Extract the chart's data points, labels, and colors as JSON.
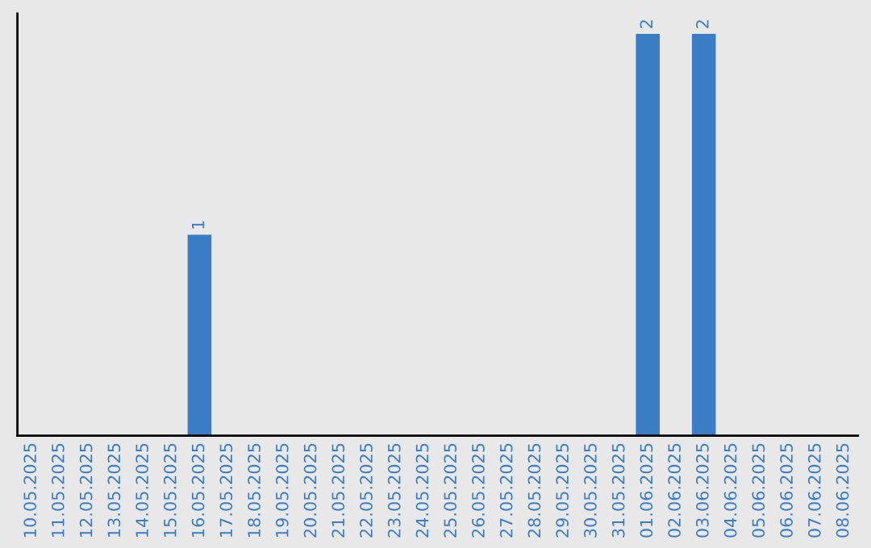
{
  "chart_data": {
    "type": "bar",
    "categories": [
      "10.05.2025",
      "11.05.2025",
      "12.05.2025",
      "13.05.2025",
      "14.05.2025",
      "15.05.2025",
      "16.05.2025",
      "17.05.2025",
      "18.05.2025",
      "19.05.2025",
      "20.05.2025",
      "21.05.2025",
      "22.05.2025",
      "23.05.2025",
      "24.05.2025",
      "25.05.2025",
      "26.05.2025",
      "27.05.2025",
      "28.05.2025",
      "29.05.2025",
      "30.05.2025",
      "31.05.2025",
      "01.06.2025",
      "02.06.2025",
      "03.06.2025",
      "04.06.2025",
      "05.06.2025",
      "06.06.2025",
      "07.06.2025",
      "08.06.2025"
    ],
    "values": [
      0,
      0,
      0,
      0,
      0,
      0,
      1,
      0,
      0,
      0,
      0,
      0,
      0,
      0,
      0,
      0,
      0,
      0,
      0,
      0,
      0,
      0,
      2,
      0,
      2,
      0,
      0,
      0,
      0,
      0
    ],
    "value_labels": [
      null,
      null,
      null,
      null,
      null,
      null,
      "1",
      null,
      null,
      null,
      null,
      null,
      null,
      null,
      null,
      null,
      null,
      null,
      null,
      null,
      null,
      null,
      "2",
      null,
      "2",
      null,
      null,
      null,
      null,
      null
    ],
    "color": "#3b7dc4",
    "ylim": [
      0,
      2.1
    ],
    "tick_labels": "x",
    "grid": false
  }
}
